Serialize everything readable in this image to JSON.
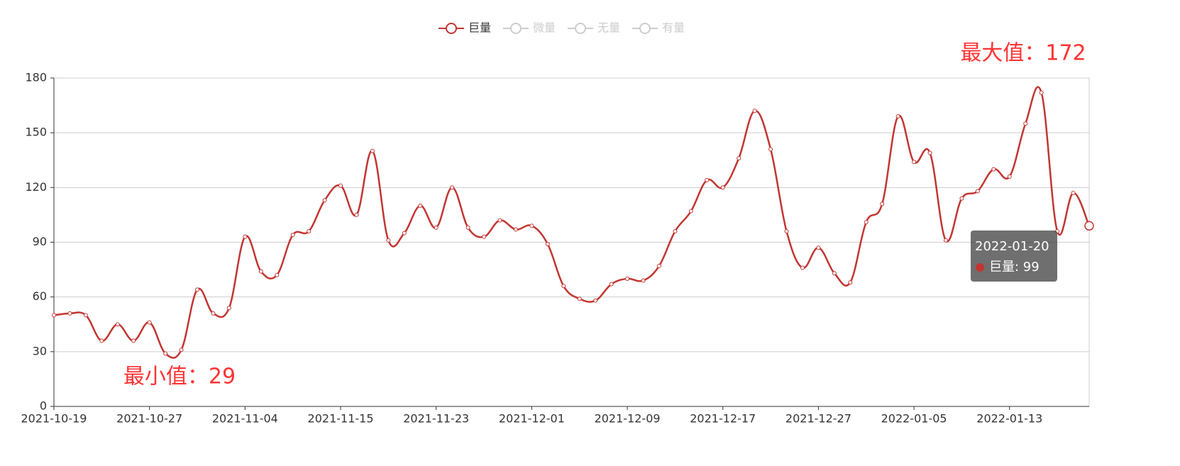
{
  "chart_data": {
    "type": "line",
    "categories": [
      "2021-10-19",
      null,
      null,
      null,
      null,
      null,
      "2021-10-27",
      null,
      null,
      null,
      null,
      null,
      "2021-11-04",
      null,
      null,
      null,
      null,
      null,
      "2021-11-15",
      null,
      null,
      null,
      null,
      null,
      "2021-11-23",
      null,
      null,
      null,
      null,
      null,
      "2021-12-01",
      null,
      null,
      null,
      null,
      null,
      "2021-12-09",
      null,
      null,
      null,
      null,
      null,
      "2021-12-17",
      null,
      null,
      null,
      null,
      null,
      "2021-12-27",
      null,
      null,
      null,
      null,
      null,
      "2022-01-05",
      null,
      null,
      null,
      null,
      null,
      "2022-01-13",
      null,
      null,
      null,
      null,
      "2022-01-20"
    ],
    "series": [
      {
        "name": "巨量",
        "color": "#c23531",
        "smooth": true,
        "values": [
          50,
          51,
          50,
          36,
          45,
          36,
          46,
          29,
          31,
          64,
          51,
          54,
          93,
          74,
          72,
          94,
          96,
          113,
          121,
          105,
          140,
          91,
          95,
          110,
          98,
          120,
          98,
          93,
          102,
          97,
          99,
          89,
          66,
          59,
          58,
          67,
          70,
          69,
          77,
          96,
          107,
          124,
          120,
          136,
          162,
          141,
          96,
          76,
          87,
          73,
          68,
          101,
          111,
          159,
          134,
          139,
          91,
          114,
          118,
          130,
          126,
          155,
          172,
          96,
          117,
          99
        ]
      }
    ],
    "legend": [
      {
        "name": "巨量",
        "selected": true
      },
      {
        "name": "微量",
        "selected": false
      },
      {
        "name": "无量",
        "selected": false
      },
      {
        "name": "有量",
        "selected": false
      }
    ],
    "ylim": [
      0,
      180
    ],
    "yticks": [
      0,
      30,
      60,
      90,
      120,
      150,
      180
    ],
    "grid": true,
    "annotations": {
      "max": "最大值：172",
      "min": "最小值：29"
    },
    "tooltip": {
      "index": 65,
      "text": "巨量: 99"
    }
  }
}
